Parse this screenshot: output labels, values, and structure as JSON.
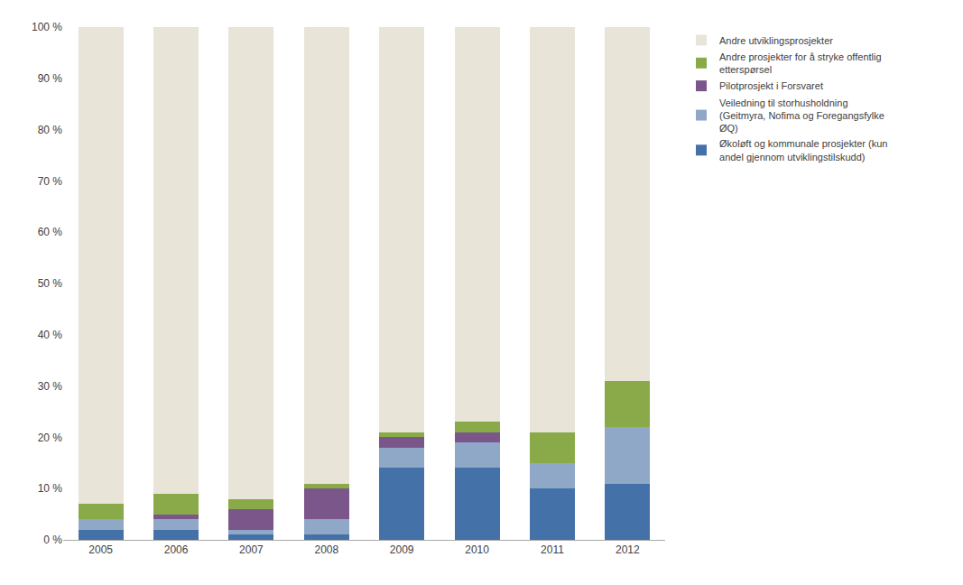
{
  "chart_data": {
    "type": "bar",
    "stacked": true,
    "categories": [
      "2005",
      "2006",
      "2007",
      "2008",
      "2009",
      "2010",
      "2011",
      "2012"
    ],
    "series": [
      {
        "name": "Økoløft og kommunale prosjekter (kun\nandel gjennom utviklingstilskudd)",
        "color": "#4472a8",
        "values": [
          2,
          2,
          1,
          1,
          14,
          14,
          10,
          11
        ]
      },
      {
        "name": "Veiledning til storhusholdning\n(Geitmyra, Nofima og Foregangsfylke\nØQ)",
        "color": "#8fa8c8",
        "values": [
          2,
          2,
          1,
          3,
          4,
          5,
          5,
          11
        ]
      },
      {
        "name": "Pilotprosjekt i Forsvaret",
        "color": "#7b568a",
        "values": [
          0,
          1,
          4,
          6,
          2,
          2,
          0,
          0
        ]
      },
      {
        "name": "Andre prosjekter for å stryke offentlig\netterspørsel",
        "color": "#8aaa4a",
        "values": [
          3,
          4,
          2,
          1,
          1,
          2,
          6,
          9
        ]
      },
      {
        "name": "Andre utviklingsprosjekter",
        "color": "#e8e4d8",
        "values": [
          93,
          91,
          92,
          89,
          79,
          77,
          79,
          69
        ]
      }
    ],
    "ylim": [
      0,
      100
    ],
    "yticks": [
      {
        "value": 0,
        "label": "0 %"
      },
      {
        "value": 10,
        "label": "10 %"
      },
      {
        "value": 20,
        "label": "20 %"
      },
      {
        "value": 30,
        "label": "30 %"
      },
      {
        "value": 40,
        "label": "40 %"
      },
      {
        "value": 50,
        "label": "50 %"
      },
      {
        "value": 60,
        "label": "60 %"
      },
      {
        "value": 70,
        "label": "70 %"
      },
      {
        "value": 80,
        "label": "80 %"
      },
      {
        "value": 90,
        "label": "90 %"
      },
      {
        "value": 100,
        "label": "100 %"
      }
    ],
    "grid": false,
    "legend": "right"
  }
}
